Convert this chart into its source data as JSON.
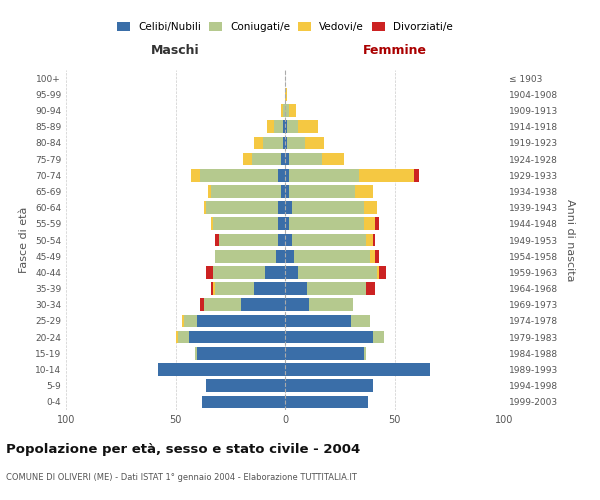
{
  "age_groups": [
    "0-4",
    "5-9",
    "10-14",
    "15-19",
    "20-24",
    "25-29",
    "30-34",
    "35-39",
    "40-44",
    "45-49",
    "50-54",
    "55-59",
    "60-64",
    "65-69",
    "70-74",
    "75-79",
    "80-84",
    "85-89",
    "90-94",
    "95-99",
    "100+"
  ],
  "birth_years": [
    "1999-2003",
    "1994-1998",
    "1989-1993",
    "1984-1988",
    "1979-1983",
    "1974-1978",
    "1969-1973",
    "1964-1968",
    "1959-1963",
    "1954-1958",
    "1949-1953",
    "1944-1948",
    "1939-1943",
    "1934-1938",
    "1929-1933",
    "1924-1928",
    "1919-1923",
    "1914-1918",
    "1909-1913",
    "1904-1908",
    "≤ 1903"
  ],
  "maschi": {
    "celibi": [
      38,
      36,
      58,
      40,
      44,
      40,
      20,
      14,
      9,
      4,
      3,
      3,
      3,
      2,
      3,
      2,
      1,
      1,
      0,
      0,
      0
    ],
    "coniugati": [
      0,
      0,
      0,
      1,
      5,
      6,
      17,
      18,
      24,
      28,
      27,
      30,
      33,
      32,
      36,
      13,
      9,
      4,
      1,
      0,
      0
    ],
    "vedovi": [
      0,
      0,
      0,
      0,
      1,
      1,
      0,
      1,
      0,
      0,
      0,
      1,
      1,
      1,
      4,
      4,
      4,
      3,
      1,
      0,
      0
    ],
    "divorziati": [
      0,
      0,
      0,
      0,
      0,
      0,
      2,
      1,
      3,
      0,
      2,
      0,
      0,
      0,
      0,
      0,
      0,
      0,
      0,
      0,
      0
    ]
  },
  "femmine": {
    "nubili": [
      38,
      40,
      66,
      36,
      40,
      30,
      11,
      10,
      6,
      4,
      3,
      2,
      3,
      2,
      2,
      2,
      1,
      1,
      0,
      0,
      0
    ],
    "coniugate": [
      0,
      0,
      0,
      1,
      5,
      9,
      20,
      27,
      36,
      35,
      34,
      34,
      33,
      30,
      32,
      15,
      8,
      5,
      2,
      0,
      0
    ],
    "vedove": [
      0,
      0,
      0,
      0,
      0,
      0,
      0,
      0,
      1,
      2,
      3,
      5,
      6,
      8,
      25,
      10,
      9,
      9,
      3,
      1,
      0
    ],
    "divorziate": [
      0,
      0,
      0,
      0,
      0,
      0,
      0,
      4,
      3,
      2,
      1,
      2,
      0,
      0,
      2,
      0,
      0,
      0,
      0,
      0,
      0
    ]
  },
  "colors": {
    "celibi": "#3a6ea8",
    "coniugati": "#b5c98e",
    "vedovi": "#f5c842",
    "divorziati": "#cc2222"
  },
  "title": "Popolazione per età, sesso e stato civile - 2004",
  "subtitle": "COMUNE DI OLIVERI (ME) - Dati ISTAT 1° gennaio 2004 - Elaborazione TUTTITALIA.IT",
  "xlabel_left": "Maschi",
  "xlabel_right": "Femmine",
  "ylabel_left": "Fasce di età",
  "ylabel_right": "Anni di nascita",
  "xlim": 100,
  "background_color": "#ffffff",
  "grid_color": "#cccccc"
}
